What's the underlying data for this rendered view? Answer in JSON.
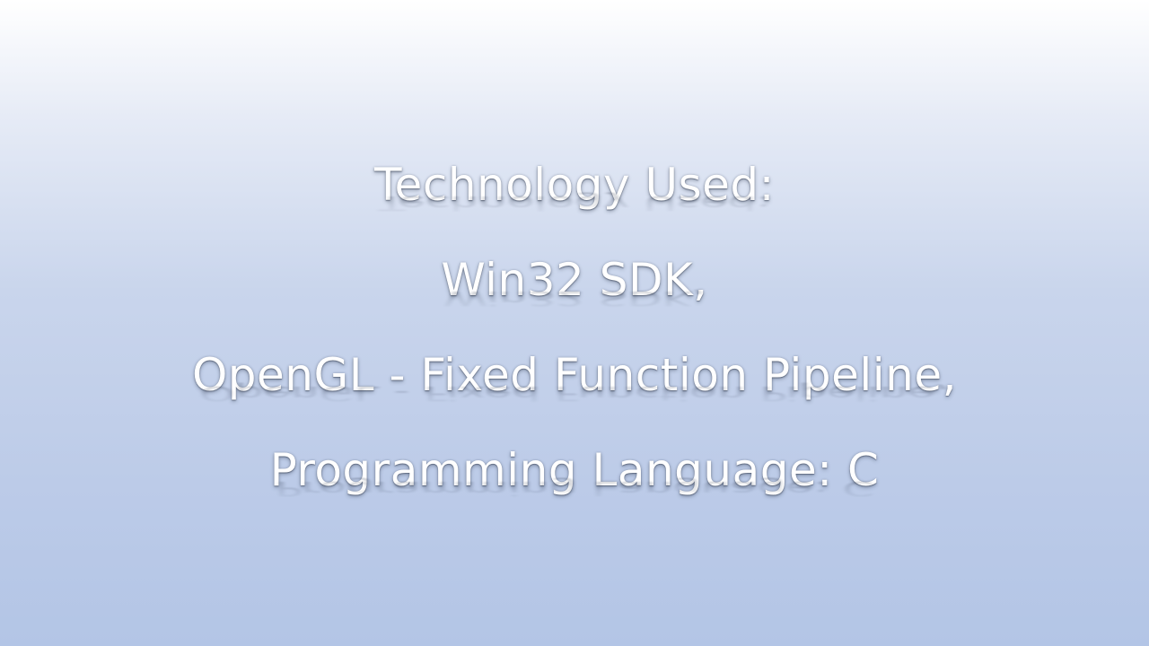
{
  "slide": {
    "lines": [
      "Technology Used:",
      "Win32 SDK,",
      "OpenGL - Fixed Function Pipeline,",
      "Programming Language: C"
    ]
  },
  "colors": {
    "background_top": "#ffffff",
    "background_bottom": "#b3c5e6",
    "text": "#ffffff"
  }
}
